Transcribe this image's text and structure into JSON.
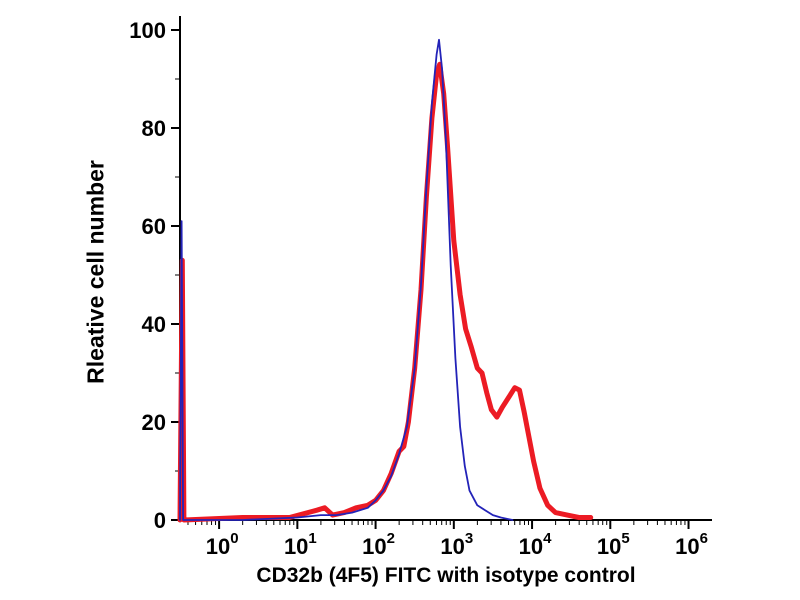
{
  "figure": {
    "background": "#ffffff",
    "axis_color": "#000000",
    "text_color": "#000000"
  },
  "chart_data": {
    "type": "line",
    "subtype": "flow-cytometry-histogram-overlay",
    "title": "",
    "xlabel": "CD32b (4F5) FITC with isotype control",
    "ylabel": "Rleative cell number",
    "x_scale": "log10",
    "x_tick_base": "10",
    "xlog_range": [
      -0.5,
      6.3
    ],
    "ylim": [
      0,
      100
    ],
    "x_major_tick_exponents": [
      0,
      1,
      2,
      3,
      4,
      5,
      6
    ],
    "y_major_ticks": [
      0,
      20,
      40,
      60,
      80,
      100
    ],
    "y_minor_ticks": [
      10,
      30,
      50,
      70,
      90
    ],
    "grid": false,
    "legend": "none",
    "series": [
      {
        "name": "CD32b (4F5) FITC",
        "color": "#ec1b24",
        "width": 5,
        "points_format": "[log10(x), relative_cell_number]",
        "points": [
          [
            -0.5,
            0
          ],
          [
            -0.47,
            53
          ],
          [
            -0.45,
            0
          ],
          [
            0.3,
            0.5
          ],
          [
            0.9,
            0.5
          ],
          [
            1.25,
            2
          ],
          [
            1.35,
            2.5
          ],
          [
            1.45,
            1
          ],
          [
            1.6,
            1.5
          ],
          [
            1.75,
            2.5
          ],
          [
            1.9,
            3
          ],
          [
            2.0,
            4
          ],
          [
            2.1,
            6
          ],
          [
            2.2,
            9.5
          ],
          [
            2.3,
            14
          ],
          [
            2.36,
            15
          ],
          [
            2.42,
            20
          ],
          [
            2.5,
            31
          ],
          [
            2.58,
            47
          ],
          [
            2.65,
            66
          ],
          [
            2.72,
            82
          ],
          [
            2.78,
            91
          ],
          [
            2.82,
            93
          ],
          [
            2.87,
            87
          ],
          [
            2.92,
            76
          ],
          [
            3.0,
            57
          ],
          [
            3.08,
            46
          ],
          [
            3.15,
            39
          ],
          [
            3.22,
            35.5
          ],
          [
            3.3,
            31
          ],
          [
            3.36,
            30
          ],
          [
            3.42,
            26
          ],
          [
            3.48,
            22.5
          ],
          [
            3.55,
            21
          ],
          [
            3.62,
            23
          ],
          [
            3.7,
            25
          ],
          [
            3.78,
            27
          ],
          [
            3.84,
            26.5
          ],
          [
            3.9,
            22
          ],
          [
            3.96,
            17
          ],
          [
            4.02,
            12
          ],
          [
            4.1,
            6.5
          ],
          [
            4.2,
            3
          ],
          [
            4.3,
            1.5
          ],
          [
            4.45,
            1
          ],
          [
            4.6,
            0.5
          ],
          [
            4.75,
            0.5
          ]
        ]
      },
      {
        "name": "isotype control",
        "color": "#2323b8",
        "width": 1.8,
        "points_format": "[log10(x), relative_cell_number]",
        "points": [
          [
            -0.5,
            0
          ],
          [
            -0.48,
            61
          ],
          [
            -0.46,
            0
          ],
          [
            0.3,
            0
          ],
          [
            1.0,
            0.5
          ],
          [
            1.3,
            1
          ],
          [
            1.5,
            1
          ],
          [
            1.7,
            1.5
          ],
          [
            1.9,
            2.5
          ],
          [
            2.0,
            4
          ],
          [
            2.1,
            6
          ],
          [
            2.2,
            9
          ],
          [
            2.3,
            13.5
          ],
          [
            2.4,
            19
          ],
          [
            2.5,
            31
          ],
          [
            2.58,
            48
          ],
          [
            2.65,
            68
          ],
          [
            2.72,
            85
          ],
          [
            2.78,
            95
          ],
          [
            2.81,
            98
          ],
          [
            2.85,
            92
          ],
          [
            2.9,
            77
          ],
          [
            2.96,
            52
          ],
          [
            3.02,
            33
          ],
          [
            3.08,
            19
          ],
          [
            3.14,
            11
          ],
          [
            3.2,
            6
          ],
          [
            3.3,
            3
          ],
          [
            3.4,
            2
          ],
          [
            3.5,
            1
          ],
          [
            3.6,
            0.5
          ],
          [
            3.75,
            0
          ]
        ]
      }
    ]
  }
}
